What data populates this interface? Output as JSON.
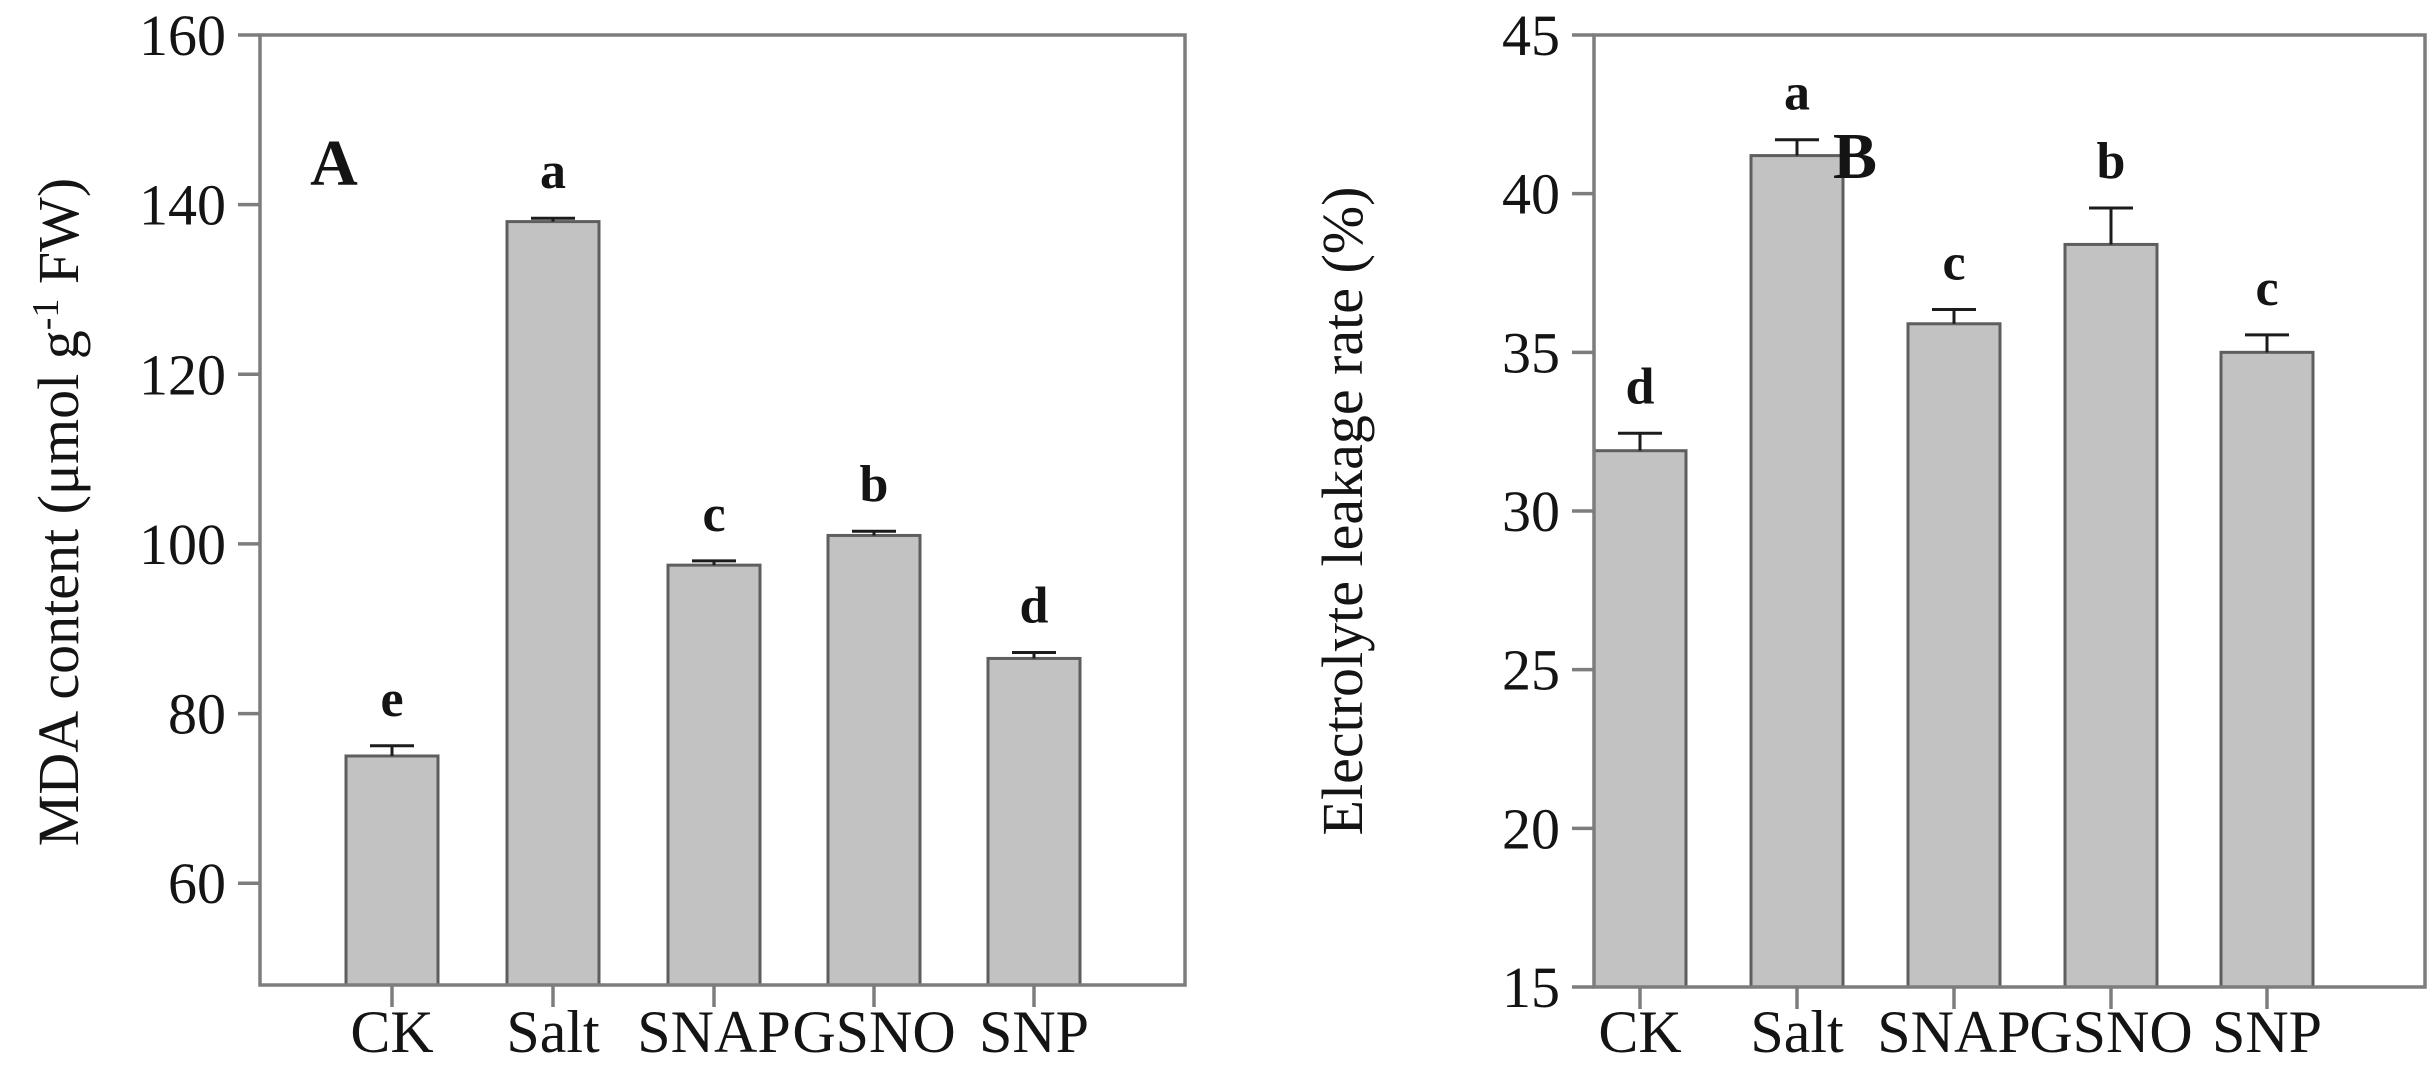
{
  "figure": {
    "description": "Two-panel bar chart of salt stress physiology measurements",
    "panel_count": 2
  },
  "chart_style": {
    "background": "#ffffff",
    "bar_fill": "#c2c2c2",
    "bar_edge": "#5e5e5e",
    "axis_color": "#7d7d7d",
    "error_bar_color": "#1c1c1c",
    "text_color": "#141414"
  },
  "chart_data": [
    {
      "type": "bar",
      "panel_label": "A",
      "title": "",
      "xlabel": "",
      "ylabel": "MDA content (μmol g⁻¹ FW)",
      "ylabel_parts": {
        "pre": "MDA content (μmol g",
        "sup": "-1",
        "post": " FW)"
      },
      "categories": [
        "CK",
        "Salt",
        "SNAP",
        "GSNO",
        "SNP"
      ],
      "values": [
        75,
        138,
        97.5,
        101,
        86.5
      ],
      "errors": [
        1.2,
        0.4,
        0.5,
        0.5,
        0.7
      ],
      "sig_letters": [
        "e",
        "a",
        "c",
        "b",
        "d"
      ],
      "yticks": [
        60,
        80,
        100,
        120,
        140,
        160
      ],
      "ylim": [
        48,
        160
      ],
      "grid": false,
      "legend": null
    },
    {
      "type": "bar",
      "panel_label": "B",
      "title": "",
      "xlabel": "",
      "ylabel": "Electrolyte leakage rate (%)",
      "ylabel_parts": {
        "pre": "Electrolyte leakage rate (%)",
        "sup": "",
        "post": ""
      },
      "categories": [
        "CK",
        "Salt",
        "SNAP",
        "GSNO",
        "SNP"
      ],
      "values": [
        31.9,
        41.2,
        35.9,
        38.4,
        35.0
      ],
      "errors": [
        0.55,
        0.5,
        0.45,
        1.15,
        0.55
      ],
      "sig_letters": [
        "d",
        "a",
        "c",
        "b",
        "c"
      ],
      "yticks": [
        15,
        20,
        25,
        30,
        35,
        40,
        45
      ],
      "ylim": [
        15,
        45
      ],
      "grid": false,
      "legend": null
    }
  ]
}
